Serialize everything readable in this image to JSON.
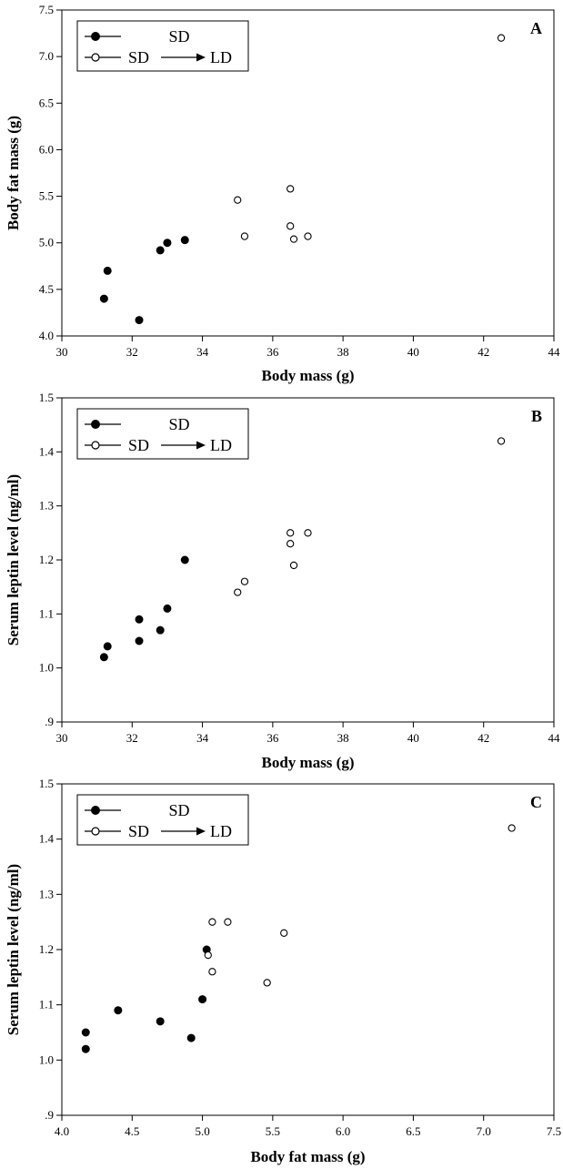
{
  "chart_data": [
    {
      "type": "scatter",
      "panel_label": "A",
      "xlabel": "Body mass (g)",
      "ylabel": "Body fat mass (g)",
      "xlim": [
        30,
        44
      ],
      "ylim": [
        4.0,
        7.5
      ],
      "x_ticks": [
        30,
        32,
        34,
        36,
        38,
        40,
        42,
        44
      ],
      "x_tick_labels": [
        "30",
        "32",
        "34",
        "36",
        "38",
        "40",
        "42",
        "44"
      ],
      "y_ticks": [
        4.0,
        4.5,
        5.0,
        5.5,
        6.0,
        6.5,
        7.0,
        7.5
      ],
      "y_tick_labels": [
        "4.0",
        "4.5",
        "5.0",
        "5.5",
        "6.0",
        "6.5",
        "7.0",
        "7.5"
      ],
      "grid": false,
      "legend_placement": "top-left",
      "series": [
        {
          "legend_left": "SD",
          "legend_right": "",
          "marker": "filled-circle",
          "points": [
            [
              31.2,
              4.4
            ],
            [
              31.3,
              4.7
            ],
            [
              32.2,
              4.17
            ],
            [
              32.8,
              4.92
            ],
            [
              33.0,
              5.0
            ],
            [
              33.5,
              5.03
            ]
          ]
        },
        {
          "legend_left": "SD",
          "legend_right": "LD",
          "marker": "open-circle",
          "points": [
            [
              35.0,
              5.46
            ],
            [
              35.2,
              5.07
            ],
            [
              36.5,
              5.58
            ],
            [
              36.5,
              5.18
            ],
            [
              36.6,
              5.04
            ],
            [
              37.0,
              5.07
            ],
            [
              42.5,
              7.2
            ]
          ]
        }
      ]
    },
    {
      "type": "scatter",
      "panel_label": "B",
      "xlabel": "Body mass (g)",
      "ylabel": "Serum leptin level (ng/ml)",
      "xlim": [
        30,
        44
      ],
      "ylim": [
        0.9,
        1.5
      ],
      "x_ticks": [
        30,
        32,
        34,
        36,
        38,
        40,
        42,
        44
      ],
      "x_tick_labels": [
        "30",
        "32",
        "34",
        "36",
        "38",
        "40",
        "42",
        "44"
      ],
      "y_ticks": [
        0.9,
        1.0,
        1.1,
        1.2,
        1.3,
        1.4,
        1.5
      ],
      "y_tick_labels": [
        ".9",
        "1.0",
        "1.1",
        "1.2",
        "1.3",
        "1.4",
        "1.5"
      ],
      "grid": false,
      "legend_placement": "top-left",
      "series": [
        {
          "legend_left": "SD",
          "legend_right": "",
          "marker": "filled-circle",
          "points": [
            [
              31.2,
              1.02
            ],
            [
              31.3,
              1.04
            ],
            [
              32.2,
              1.09
            ],
            [
              32.2,
              1.05
            ],
            [
              32.8,
              1.07
            ],
            [
              33.0,
              1.11
            ],
            [
              33.5,
              1.2
            ]
          ]
        },
        {
          "legend_left": "SD",
          "legend_right": "LD",
          "marker": "open-circle",
          "points": [
            [
              35.0,
              1.14
            ],
            [
              35.2,
              1.16
            ],
            [
              36.5,
              1.25
            ],
            [
              36.5,
              1.23
            ],
            [
              36.6,
              1.19
            ],
            [
              37.0,
              1.25
            ],
            [
              42.5,
              1.42
            ]
          ]
        }
      ]
    },
    {
      "type": "scatter",
      "panel_label": "C",
      "xlabel": "Body fat mass (g)",
      "ylabel": "Serum leptin level (ng/ml)",
      "xlim": [
        4.0,
        7.5
      ],
      "ylim": [
        0.9,
        1.5
      ],
      "x_ticks": [
        4.0,
        4.5,
        5.0,
        5.5,
        6.0,
        6.5,
        7.0,
        7.5
      ],
      "x_tick_labels": [
        "4.0",
        "4.5",
        "5.0",
        "5.5",
        "6.0",
        "6.5",
        "7.0",
        "7.5"
      ],
      "y_ticks": [
        0.9,
        1.0,
        1.1,
        1.2,
        1.3,
        1.4,
        1.5
      ],
      "y_tick_labels": [
        ".9",
        "1.0",
        "1.1",
        "1.2",
        "1.3",
        "1.4",
        "1.5"
      ],
      "grid": false,
      "legend_placement": "top-left",
      "series": [
        {
          "legend_left": "SD",
          "legend_right": "",
          "marker": "filled-circle",
          "points": [
            [
              4.17,
              1.02
            ],
            [
              4.17,
              1.05
            ],
            [
              4.4,
              1.09
            ],
            [
              4.7,
              1.07
            ],
            [
              4.92,
              1.04
            ],
            [
              5.0,
              1.11
            ],
            [
              5.03,
              1.2
            ]
          ]
        },
        {
          "legend_left": "SD",
          "legend_right": "LD",
          "marker": "open-circle",
          "points": [
            [
              5.04,
              1.19
            ],
            [
              5.07,
              1.16
            ],
            [
              5.07,
              1.25
            ],
            [
              5.18,
              1.25
            ],
            [
              5.46,
              1.14
            ],
            [
              5.58,
              1.23
            ],
            [
              7.2,
              1.42
            ]
          ]
        }
      ]
    }
  ]
}
